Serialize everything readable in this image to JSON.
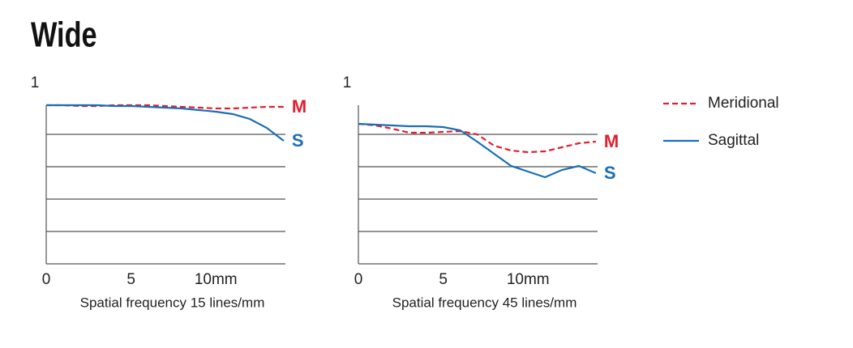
{
  "title": "Wide",
  "chart_data": [
    {
      "type": "line",
      "xlabel": "Spatial frequency 15 lines/mm",
      "x": [
        0,
        1,
        2,
        3,
        4,
        5,
        6,
        7,
        8,
        9,
        10,
        11,
        12,
        13,
        14
      ],
      "xlim": [
        0,
        14.1
      ],
      "xticks": [
        0,
        5,
        {
          "value": 10,
          "label": "10mm"
        }
      ],
      "ylim": [
        0,
        1
      ],
      "yticks": [
        1
      ],
      "gridlines": [
        0.2,
        0.4,
        0.6,
        0.8
      ],
      "series": [
        {
          "name": "Meridional",
          "end_label": "M",
          "color": "#e0202e",
          "dashed": true,
          "values": [
            0.98,
            0.98,
            0.975,
            0.975,
            0.98,
            0.98,
            0.98,
            0.975,
            0.97,
            0.965,
            0.96,
            0.96,
            0.965,
            0.97,
            0.97
          ]
        },
        {
          "name": "Sagittal",
          "end_label": "S",
          "color": "#1a6fb5",
          "dashed": false,
          "values": [
            0.98,
            0.98,
            0.98,
            0.98,
            0.975,
            0.975,
            0.97,
            0.965,
            0.96,
            0.95,
            0.94,
            0.925,
            0.895,
            0.84,
            0.76
          ]
        }
      ]
    },
    {
      "type": "line",
      "xlabel": "Spatial frequency 45 lines/mm",
      "x": [
        0,
        1,
        2,
        3,
        4,
        5,
        6,
        7,
        8,
        9,
        10,
        11,
        12,
        13,
        14
      ],
      "xlim": [
        0,
        14.1
      ],
      "xticks": [
        0,
        5,
        {
          "value": 10,
          "label": "10mm"
        }
      ],
      "ylim": [
        0,
        1
      ],
      "yticks": [
        1
      ],
      "gridlines": [
        0.2,
        0.4,
        0.6,
        0.8
      ],
      "series": [
        {
          "name": "Meridional",
          "end_label": "M",
          "color": "#e0202e",
          "dashed": true,
          "values": [
            0.865,
            0.855,
            0.835,
            0.81,
            0.81,
            0.815,
            0.82,
            0.8,
            0.73,
            0.7,
            0.69,
            0.695,
            0.72,
            0.745,
            0.755
          ]
        },
        {
          "name": "Sagittal",
          "end_label": "S",
          "color": "#1a6fb5",
          "dashed": false,
          "values": [
            0.865,
            0.86,
            0.855,
            0.85,
            0.85,
            0.845,
            0.825,
            0.755,
            0.68,
            0.605,
            0.57,
            0.535,
            0.58,
            0.605,
            0.56
          ]
        }
      ]
    }
  ]
}
